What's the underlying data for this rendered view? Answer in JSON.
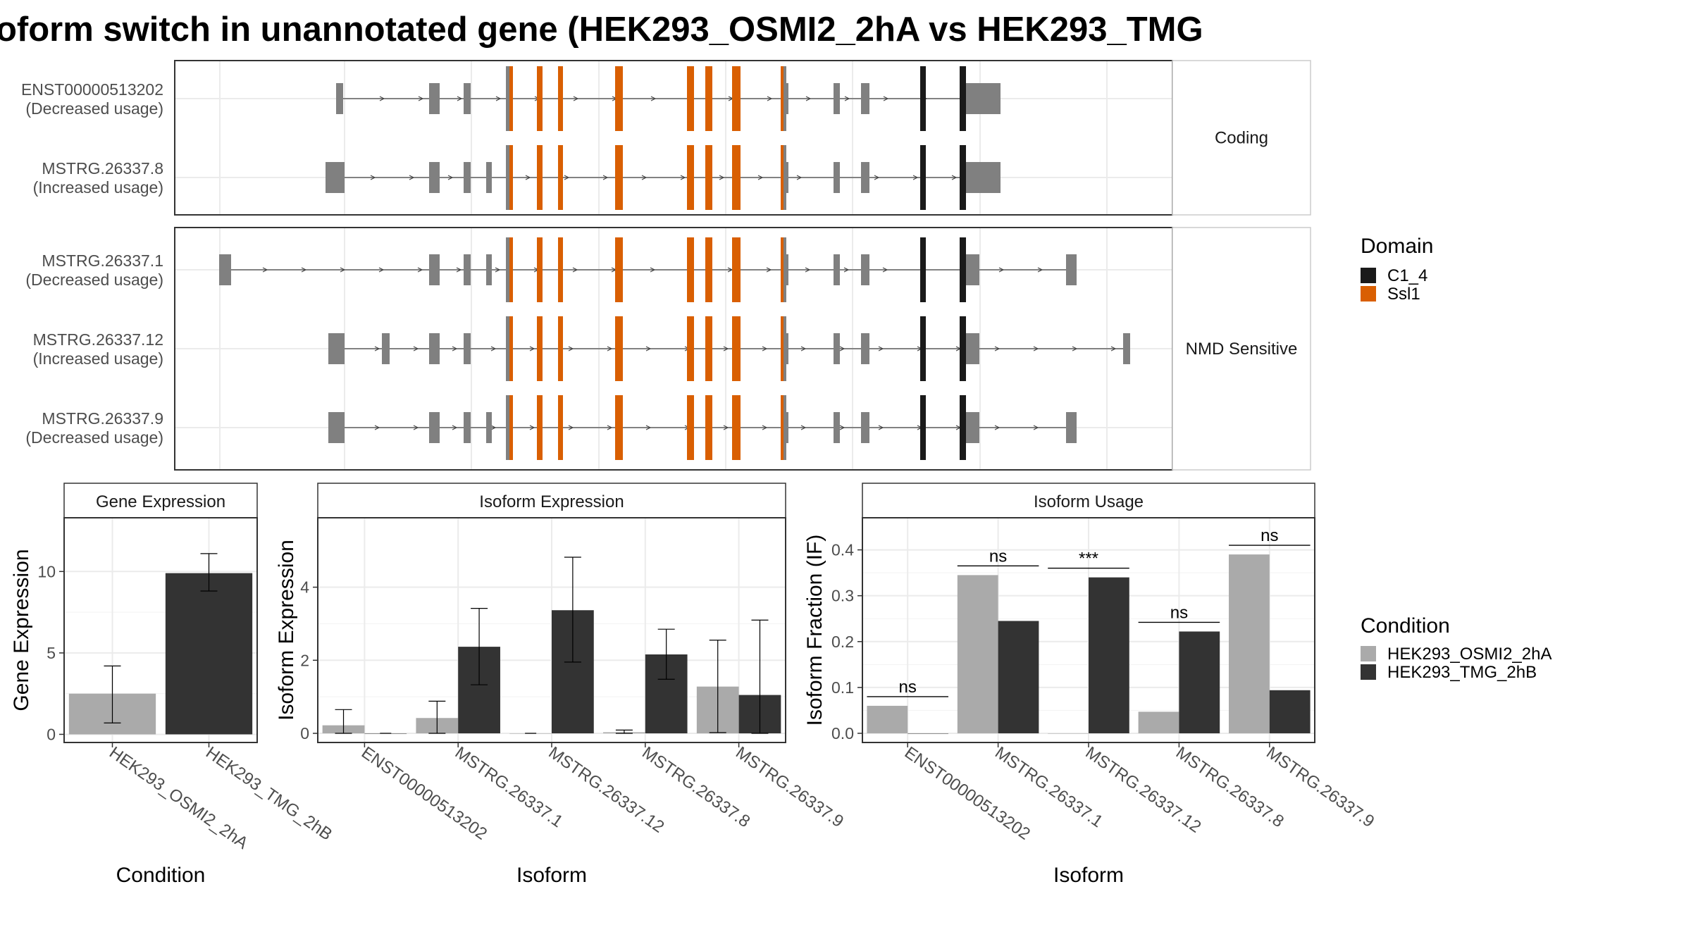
{
  "title": "oform switch in unannotated gene (HEK293_OSMI2_2hA vs HEK293_TMG",
  "colors": {
    "exon": "#808080",
    "domain_C1_4": "#1a1a1a",
    "domain_Ssl1": "#d95f02",
    "cond_a": "#aaaaaa",
    "cond_b": "#333333",
    "intron": "#444444",
    "grid": "#ebebeb",
    "panel_border": "#333333",
    "strip_bg": "#ffffff"
  },
  "structure": {
    "groups": [
      {
        "label": "Coding",
        "transcripts": [
          {
            "id": "ENST00000513202",
            "usage": "(Decreased usage)"
          },
          {
            "id": "MSTRG.26337.8",
            "usage": "(Increased usage)"
          }
        ]
      },
      {
        "label": "NMD Sensitive",
        "transcripts": [
          {
            "id": "MSTRG.26337.1",
            "usage": "(Decreased usage)"
          },
          {
            "id": "MSTRG.26337.12",
            "usage": "(Increased usage)"
          },
          {
            "id": "MSTRG.26337.9",
            "usage": "(Decreased usage)"
          }
        ]
      }
    ]
  },
  "legend_domain": {
    "title": "Domain",
    "items": [
      {
        "label": "C1_4",
        "color": "#1a1a1a"
      },
      {
        "label": "Ssl1",
        "color": "#d95f02"
      }
    ]
  },
  "legend_condition": {
    "title": "Condition",
    "items": [
      {
        "label": "HEK293_OSMI2_2hA",
        "color": "#aaaaaa"
      },
      {
        "label": "HEK293_TMG_2hB",
        "color": "#333333"
      }
    ]
  },
  "chart_data": [
    {
      "type": "bar",
      "title": "Gene Expression",
      "xlabel": "Condition",
      "ylabel": "Gene Expression",
      "categories": [
        "HEK293_OSMI2_2hA",
        "HEK293_TMG_2hB"
      ],
      "values": [
        2.5,
        9.9
      ],
      "error_low": [
        0.7,
        8.8
      ],
      "error_high": [
        4.2,
        11.1
      ],
      "ylim": [
        -0.5,
        13.3
      ],
      "yticks": [
        0,
        5,
        10
      ],
      "grid": true
    },
    {
      "type": "bar",
      "title": "Isoform Expression",
      "xlabel": "Isoform",
      "ylabel": "Isoform Expression",
      "categories": [
        "ENST00000513202",
        "MSTRG.26337.1",
        "MSTRG.26337.12",
        "MSTRG.26337.8",
        "MSTRG.26337.9"
      ],
      "series": [
        {
          "name": "HEK293_OSMI2_2hA",
          "values": [
            0.22,
            0.42,
            0.0,
            0.03,
            1.28
          ],
          "error_low": [
            0.0,
            0.0,
            0.0,
            0.0,
            0.02
          ],
          "error_high": [
            0.65,
            0.88,
            0.0,
            0.09,
            2.55
          ]
        },
        {
          "name": "HEK293_TMG_2hB",
          "values": [
            0.0,
            2.37,
            3.37,
            2.16,
            1.05
          ],
          "error_low": [
            0.0,
            1.33,
            1.95,
            1.48,
            0.0
          ],
          "error_high": [
            0.0,
            3.42,
            4.82,
            2.85,
            3.1
          ]
        }
      ],
      "ylim": [
        -0.25,
        5.9
      ],
      "yticks": [
        0,
        2,
        4
      ],
      "grid": true
    },
    {
      "type": "bar",
      "title": "Isoform Usage",
      "xlabel": "Isoform",
      "ylabel": "Isoform Fraction (IF)",
      "categories": [
        "ENST00000513202",
        "MSTRG.26337.1",
        "MSTRG.26337.12",
        "MSTRG.26337.8",
        "MSTRG.26337.9"
      ],
      "series": [
        {
          "name": "HEK293_OSMI2_2hA",
          "values": [
            0.06,
            0.345,
            0.0,
            0.047,
            0.39
          ]
        },
        {
          "name": "HEK293_TMG_2hB",
          "values": [
            0.0,
            0.245,
            0.34,
            0.222,
            0.094
          ]
        }
      ],
      "annotations": [
        {
          "category": "ENST00000513202",
          "text": "ns",
          "y": 0.08
        },
        {
          "category": "MSTRG.26337.1",
          "text": "ns",
          "y": 0.365
        },
        {
          "category": "MSTRG.26337.12",
          "text": "***",
          "y": 0.36
        },
        {
          "category": "MSTRG.26337.8",
          "text": "ns",
          "y": 0.242
        },
        {
          "category": "MSTRG.26337.9",
          "text": "ns",
          "y": 0.41
        }
      ],
      "ylim": [
        -0.02,
        0.47
      ],
      "yticks": [
        0.0,
        0.1,
        0.2,
        0.3,
        0.4
      ],
      "ytick_labels": [
        "0.0",
        "0.1",
        "0.2",
        "0.3",
        "0.4"
      ],
      "grid": true
    }
  ]
}
